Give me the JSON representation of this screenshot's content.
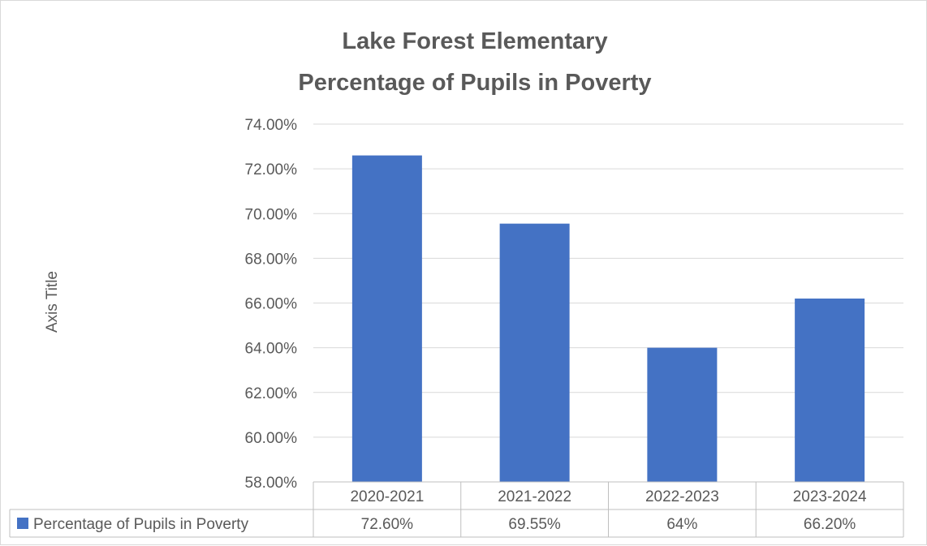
{
  "chart_data": {
    "type": "bar",
    "title": [
      "Lake Forest Elementary",
      "Percentage of Pupils in Poverty"
    ],
    "ylabel": "Axis Title",
    "xlabel": "",
    "categories": [
      "2020-2021",
      "2021-2022",
      "2022-2023",
      "2023-2024"
    ],
    "series": [
      {
        "name": "Percentage of Pupils in Poverty",
        "values": [
          72.6,
          69.55,
          64.0,
          66.2
        ],
        "value_labels": [
          "72.60%",
          "69.55%",
          "64%",
          "66.20%"
        ],
        "color": "#4472c4"
      }
    ],
    "ylim": [
      58,
      74
    ],
    "y_ticks": [
      "58.00%",
      "60.00%",
      "62.00%",
      "64.00%",
      "66.00%",
      "68.00%",
      "70.00%",
      "72.00%",
      "74.00%"
    ],
    "grid": true,
    "data_table": true,
    "legend": "data-table-left"
  }
}
